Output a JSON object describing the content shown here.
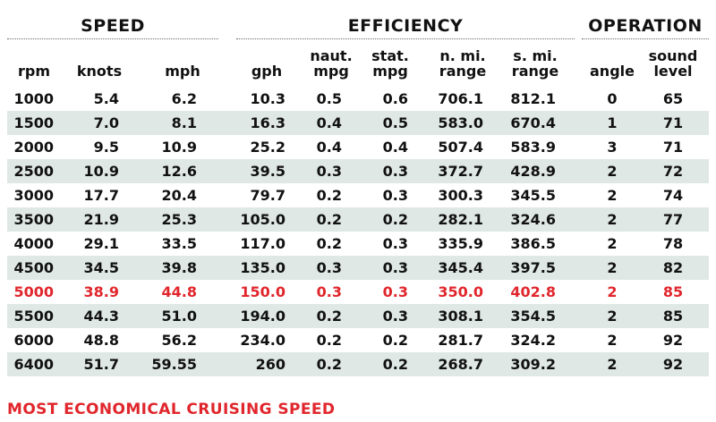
{
  "groups": {
    "speed": "SPEED",
    "efficiency": "EFFICIENCY",
    "operation": "OPERATION"
  },
  "columns": [
    {
      "key": "rpm",
      "line1": "",
      "line2": "rpm"
    },
    {
      "key": "knots",
      "line1": "",
      "line2": "knots"
    },
    {
      "key": "mph",
      "line1": "",
      "line2": "mph"
    },
    {
      "key": "gph",
      "line1": "",
      "line2": "gph"
    },
    {
      "key": "naut_mpg",
      "line1": "naut.",
      "line2": "mpg"
    },
    {
      "key": "stat_mpg",
      "line1": "stat.",
      "line2": "mpg"
    },
    {
      "key": "n_mi_range",
      "line1": "n. mi.",
      "line2": "range"
    },
    {
      "key": "s_mi_range",
      "line1": "s. mi.",
      "line2": "range"
    },
    {
      "key": "angle",
      "line1": "",
      "line2": "angle"
    },
    {
      "key": "sound_level",
      "line1": "sound",
      "line2": "level"
    }
  ],
  "rows": [
    [
      "1000",
      "5.4",
      "6.2",
      "10.3",
      "0.5",
      "0.6",
      "706.1",
      "812.1",
      "0",
      "65"
    ],
    [
      "1500",
      "7.0",
      "8.1",
      "16.3",
      "0.4",
      "0.5",
      "583.0",
      "670.4",
      "1",
      "71"
    ],
    [
      "2000",
      "9.5",
      "10.9",
      "25.2",
      "0.4",
      "0.4",
      "507.4",
      "583.9",
      "3",
      "71"
    ],
    [
      "2500",
      "10.9",
      "12.6",
      "39.5",
      "0.3",
      "0.3",
      "372.7",
      "428.9",
      "2",
      "72"
    ],
    [
      "3000",
      "17.7",
      "20.4",
      "79.7",
      "0.2",
      "0.3",
      "300.3",
      "345.5",
      "2",
      "74"
    ],
    [
      "3500",
      "21.9",
      "25.3",
      "105.0",
      "0.2",
      "0.2",
      "282.1",
      "324.6",
      "2",
      "77"
    ],
    [
      "4000",
      "29.1",
      "33.5",
      "117.0",
      "0.2",
      "0.3",
      "335.9",
      "386.5",
      "2",
      "78"
    ],
    [
      "4500",
      "34.5",
      "39.8",
      "135.0",
      "0.3",
      "0.3",
      "345.4",
      "397.5",
      "2",
      "82"
    ],
    [
      "5000",
      "38.9",
      "44.8",
      "150.0",
      "0.3",
      "0.3",
      "350.0",
      "402.8",
      "2",
      "85"
    ],
    [
      "5500",
      "44.3",
      "51.0",
      "194.0",
      "0.2",
      "0.3",
      "308.1",
      "354.5",
      "2",
      "85"
    ],
    [
      "6000",
      "48.8",
      "56.2",
      "234.0",
      "0.2",
      "0.2",
      "281.7",
      "324.2",
      "2",
      "92"
    ],
    [
      "6400",
      "51.7",
      "59.55",
      "260",
      "0.2",
      "0.2",
      "268.7",
      "309.2",
      "2",
      "92"
    ]
  ],
  "highlight_row_rpm": "5000",
  "highlight_color": "#e0262c",
  "shade_color": "#dfe8e4",
  "footnote": "MOST ECONOMICAL CRUISING SPEED"
}
